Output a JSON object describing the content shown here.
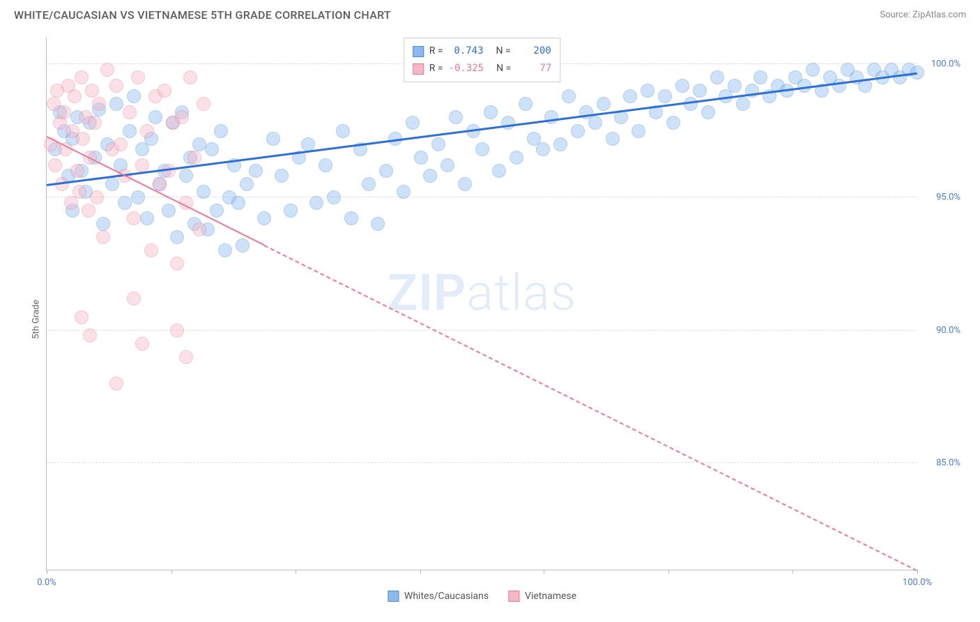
{
  "title": "WHITE/CAUCASIAN VS VIETNAMESE 5TH GRADE CORRELATION CHART",
  "source": "Source: ZipAtlas.com",
  "watermark_1": "ZIP",
  "watermark_2": "atlas",
  "chart": {
    "type": "scatter",
    "ylabel": "5th Grade",
    "xlim": [
      0,
      100
    ],
    "ylim": [
      81,
      101
    ],
    "xticks": [
      0,
      14.3,
      28.6,
      42.9,
      57.1,
      71.4,
      85.7,
      100
    ],
    "xtick_labels_shown": {
      "0": "0.0%",
      "100": "100.0%"
    },
    "yticks": [
      85,
      90,
      95,
      100
    ],
    "ytick_labels": [
      "85.0%",
      "90.0%",
      "95.0%",
      "100.0%"
    ],
    "grid_color": "#dddddd",
    "axis_color": "#bbbbbb",
    "tick_label_color": "#4a7bd0",
    "background_color": "#ffffff",
    "marker_radius": 10,
    "marker_opacity": 0.42,
    "series": [
      {
        "name": "Whites/Caucasians",
        "fill": "#8abaf0",
        "stroke": "#4a8ad4",
        "trend_color": "#2e6fd6",
        "trend_width": 3,
        "trend_dash": "solid",
        "stats": {
          "R": "0.743",
          "N": "200"
        },
        "stat_color": "#2e6fd6",
        "trend_line": {
          "x1": 0,
          "y1": 95.5,
          "x2": 100,
          "y2": 99.7
        },
        "points": [
          [
            1,
            96.8
          ],
          [
            1.5,
            98.2
          ],
          [
            2,
            97.5
          ],
          [
            2.5,
            95.8
          ],
          [
            3,
            94.5
          ],
          [
            3,
            97.2
          ],
          [
            3.5,
            98.0
          ],
          [
            4,
            96.0
          ],
          [
            4.5,
            95.2
          ],
          [
            5,
            97.8
          ],
          [
            5.5,
            96.5
          ],
          [
            6,
            98.3
          ],
          [
            6.5,
            94.0
          ],
          [
            7,
            97.0
          ],
          [
            7.5,
            95.5
          ],
          [
            8,
            98.5
          ],
          [
            8.5,
            96.2
          ],
          [
            9,
            94.8
          ],
          [
            9.5,
            97.5
          ],
          [
            10,
            98.8
          ],
          [
            10.5,
            95.0
          ],
          [
            11,
            96.8
          ],
          [
            11.5,
            94.2
          ],
          [
            12,
            97.2
          ],
          [
            12.5,
            98.0
          ],
          [
            13,
            95.5
          ],
          [
            13.5,
            96.0
          ],
          [
            14,
            94.5
          ],
          [
            14.5,
            97.8
          ],
          [
            15,
            93.5
          ],
          [
            15.5,
            98.2
          ],
          [
            16,
            95.8
          ],
          [
            16.5,
            96.5
          ],
          [
            17,
            94.0
          ],
          [
            17.5,
            97.0
          ],
          [
            18,
            95.2
          ],
          [
            18.5,
            93.8
          ],
          [
            19,
            96.8
          ],
          [
            19.5,
            94.5
          ],
          [
            20,
            97.5
          ],
          [
            20.5,
            93.0
          ],
          [
            21,
            95.0
          ],
          [
            21.5,
            96.2
          ],
          [
            22,
            94.8
          ],
          [
            22.5,
            93.2
          ],
          [
            23,
            95.5
          ],
          [
            24,
            96.0
          ],
          [
            25,
            94.2
          ],
          [
            26,
            97.2
          ],
          [
            27,
            95.8
          ],
          [
            28,
            94.5
          ],
          [
            29,
            96.5
          ],
          [
            30,
            97.0
          ],
          [
            31,
            94.8
          ],
          [
            32,
            96.2
          ],
          [
            33,
            95.0
          ],
          [
            34,
            97.5
          ],
          [
            35,
            94.2
          ],
          [
            36,
            96.8
          ],
          [
            37,
            95.5
          ],
          [
            38,
            94.0
          ],
          [
            39,
            96.0
          ],
          [
            40,
            97.2
          ],
          [
            41,
            95.2
          ],
          [
            42,
            97.8
          ],
          [
            43,
            96.5
          ],
          [
            44,
            95.8
          ],
          [
            45,
            97.0
          ],
          [
            46,
            96.2
          ],
          [
            47,
            98.0
          ],
          [
            48,
            95.5
          ],
          [
            49,
            97.5
          ],
          [
            50,
            96.8
          ],
          [
            51,
            98.2
          ],
          [
            52,
            96.0
          ],
          [
            53,
            97.8
          ],
          [
            54,
            96.5
          ],
          [
            55,
            98.5
          ],
          [
            56,
            97.2
          ],
          [
            57,
            96.8
          ],
          [
            58,
            98.0
          ],
          [
            59,
            97.0
          ],
          [
            60,
            98.8
          ],
          [
            61,
            97.5
          ],
          [
            62,
            98.2
          ],
          [
            63,
            97.8
          ],
          [
            64,
            98.5
          ],
          [
            65,
            97.2
          ],
          [
            66,
            98.0
          ],
          [
            67,
            98.8
          ],
          [
            68,
            97.5
          ],
          [
            69,
            99.0
          ],
          [
            70,
            98.2
          ],
          [
            71,
            98.8
          ],
          [
            72,
            97.8
          ],
          [
            73,
            99.2
          ],
          [
            74,
            98.5
          ],
          [
            75,
            99.0
          ],
          [
            76,
            98.2
          ],
          [
            77,
            99.5
          ],
          [
            78,
            98.8
          ],
          [
            79,
            99.2
          ],
          [
            80,
            98.5
          ],
          [
            81,
            99.0
          ],
          [
            82,
            99.5
          ],
          [
            83,
            98.8
          ],
          [
            84,
            99.2
          ],
          [
            85,
            99.0
          ],
          [
            86,
            99.5
          ],
          [
            87,
            99.2
          ],
          [
            88,
            99.8
          ],
          [
            89,
            99.0
          ],
          [
            90,
            99.5
          ],
          [
            91,
            99.2
          ],
          [
            92,
            99.8
          ],
          [
            93,
            99.5
          ],
          [
            94,
            99.2
          ],
          [
            95,
            99.8
          ],
          [
            96,
            99.5
          ],
          [
            97,
            99.8
          ],
          [
            98,
            99.5
          ],
          [
            99,
            99.8
          ],
          [
            100,
            99.7
          ]
        ]
      },
      {
        "name": "Vietnamese",
        "fill": "#f7b6c3",
        "stroke": "#e97a92",
        "trend_color": "#e97a92",
        "trend_width": 2,
        "trend_dash": "dashed",
        "trend_solid_until_x": 25,
        "stats": {
          "R": "-0.325",
          "N": "77"
        },
        "stat_color": "#e97a92",
        "trend_line": {
          "x1": 0,
          "y1": 97.3,
          "x2": 100,
          "y2": 81.0
        },
        "points": [
          [
            0.5,
            97.0
          ],
          [
            0.8,
            98.5
          ],
          [
            1,
            96.2
          ],
          [
            1.2,
            99.0
          ],
          [
            1.5,
            97.8
          ],
          [
            1.8,
            95.5
          ],
          [
            2,
            98.2
          ],
          [
            2.2,
            96.8
          ],
          [
            2.5,
            99.2
          ],
          [
            2.8,
            94.8
          ],
          [
            3,
            97.5
          ],
          [
            3.2,
            98.8
          ],
          [
            3.5,
            96.0
          ],
          [
            3.8,
            95.2
          ],
          [
            4,
            99.5
          ],
          [
            4.2,
            97.2
          ],
          [
            4.5,
            98.0
          ],
          [
            4.8,
            94.5
          ],
          [
            5,
            96.5
          ],
          [
            5.2,
            99.0
          ],
          [
            5.5,
            97.8
          ],
          [
            5.8,
            95.0
          ],
          [
            6,
            98.5
          ],
          [
            6.5,
            93.5
          ],
          [
            7,
            99.8
          ],
          [
            7.5,
            96.8
          ],
          [
            8,
            99.2
          ],
          [
            8.5,
            97.0
          ],
          [
            9,
            95.8
          ],
          [
            9.5,
            98.2
          ],
          [
            10,
            94.2
          ],
          [
            10.5,
            99.5
          ],
          [
            11,
            96.2
          ],
          [
            11.5,
            97.5
          ],
          [
            12,
            93.0
          ],
          [
            12.5,
            98.8
          ],
          [
            13,
            95.5
          ],
          [
            13.5,
            99.0
          ],
          [
            14,
            96.0
          ],
          [
            14.5,
            97.8
          ],
          [
            15,
            92.5
          ],
          [
            15.5,
            98.0
          ],
          [
            16,
            94.8
          ],
          [
            16.5,
            99.5
          ],
          [
            17,
            96.5
          ],
          [
            17.5,
            93.8
          ],
          [
            18,
            98.5
          ],
          [
            4,
            90.5
          ],
          [
            5,
            89.8
          ],
          [
            8,
            88.0
          ],
          [
            10,
            91.2
          ],
          [
            11,
            89.5
          ],
          [
            15,
            90.0
          ],
          [
            16,
            89.0
          ]
        ]
      }
    ]
  },
  "legend": {
    "items": [
      {
        "label": "Whites/Caucasians",
        "fill": "#8abaf0",
        "stroke": "#4a8ad4"
      },
      {
        "label": "Vietnamese",
        "fill": "#f7b6c3",
        "stroke": "#e97a92"
      }
    ]
  }
}
